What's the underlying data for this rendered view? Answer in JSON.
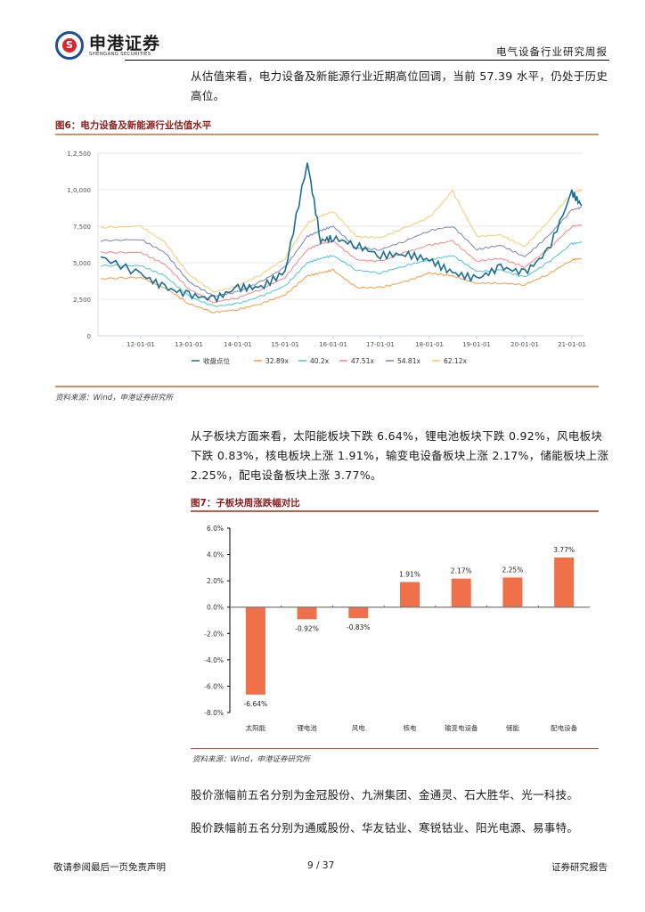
{
  "header": {
    "logo_cn": "申港证券",
    "logo_en": "SHENGANG SECURITIES",
    "logo_glyph": "S",
    "report_title": "电气设备行业研究周报"
  },
  "paragraphs": {
    "valuation": "从估值来看，电力设备及新能源行业近期高位回调，当前 57.39 水平，仍处于历史高位。",
    "subsectors": "从子板块方面来看，太阳能板块下跌 6.64%，锂电池板块下跌 0.92%，风电板块下跌 0.83%，核电板块上涨 1.91%，输变电设备板块上涨 2.17%，储能板块上涨 2.25%，配电设备板块上涨 3.77%。",
    "top_gainers": "股价涨幅前五名分别为金冠股份、九洲集团、金通灵、石大胜华、光一科技。",
    "top_losers": "股价跌幅前五名分别为通威股份、华友钴业、寒锐钴业、阳光电源、易事特。"
  },
  "figure6": {
    "title": "图6：电力设备及新能源行业估值水平",
    "source": "资料来源：Wind，申港证券研究所"
  },
  "figure7": {
    "title": "图7：子板块周涨跌幅对比",
    "source": "资料来源：Wind，申港证券研究所"
  },
  "footer": {
    "disclaimer": "敬请参阅最后一页免责声明",
    "page": "9 / 37",
    "doc_type": "证券研究报告"
  },
  "chart_data": [
    {
      "type": "line",
      "title": "电力设备及新能源行业估值水平",
      "xlabel": "",
      "ylabel": "",
      "ylim": [
        0,
        12500
      ],
      "yticks": [
        "0",
        "2,500",
        "5,000",
        "7,500",
        "1,0,000",
        "1,2,500"
      ],
      "xticks": [
        "12-01-01",
        "13-01-01",
        "14-01-01",
        "15-01-01",
        "16-01-01",
        "17-01-01",
        "18-01-01",
        "19-01-01",
        "20-01-01",
        "21-01-01"
      ],
      "grid": true,
      "legend_position": "bottom",
      "x": [
        "11-07",
        "12-01",
        "12-07",
        "13-01",
        "13-07",
        "14-01",
        "14-07",
        "15-01",
        "15-06",
        "15-09",
        "16-01",
        "16-07",
        "17-01",
        "17-07",
        "18-01",
        "18-07",
        "19-01",
        "19-07",
        "20-01",
        "20-07",
        "21-01",
        "21-02"
      ],
      "series": [
        {
          "name": "收盘点位",
          "color": "#1a6e96",
          "values": [
            5400,
            4200,
            3300,
            2800,
            2500,
            3300,
            3300,
            4400,
            11900,
            6500,
            6700,
            6200,
            5500,
            5600,
            5200,
            4300,
            3900,
            4700,
            4300,
            5800,
            9800,
            8900
          ]
        },
        {
          "name": "32.89x",
          "color": "#f39a3e",
          "values": [
            3900,
            4000,
            3300,
            2200,
            1600,
            1800,
            2200,
            2800,
            4100,
            4300,
            4500,
            3300,
            3300,
            3700,
            4300,
            4100,
            3600,
            3600,
            3500,
            4200,
            5200,
            5300
          ]
        },
        {
          "name": "40.2x",
          "color": "#4ec5c8",
          "values": [
            4800,
            4800,
            4100,
            2700,
            2000,
            2200,
            2700,
            3400,
            5000,
            5300,
            5500,
            4500,
            4300,
            4800,
            5200,
            5500,
            4400,
            4500,
            4000,
            5000,
            6300,
            6400
          ]
        },
        {
          "name": "47.51x",
          "color": "#f08783",
          "values": [
            5700,
            5700,
            4900,
            3200,
            2300,
            2600,
            3200,
            4000,
            5900,
            6300,
            6500,
            5200,
            5100,
            5700,
            6200,
            6500,
            5100,
            5300,
            4700,
            5900,
            7500,
            7600
          ]
        },
        {
          "name": "54.81x",
          "color": "#7a84b3",
          "values": [
            6500,
            6600,
            5700,
            3700,
            2700,
            3000,
            3700,
            4700,
            6800,
            7200,
            7500,
            6000,
            5900,
            6500,
            7200,
            7500,
            5900,
            6200,
            5400,
            6800,
            8600,
            8800
          ]
        },
        {
          "name": "62.12x",
          "color": "#f6c96d",
          "values": [
            7400,
            7500,
            6400,
            4200,
            3000,
            3400,
            4200,
            5300,
            7700,
            8200,
            8500,
            6800,
            6700,
            7400,
            8100,
            9900,
            6800,
            6900,
            6100,
            7800,
            9800,
            10000
          ]
        }
      ]
    },
    {
      "type": "bar",
      "title": "子板块周涨跌幅对比",
      "xlabel": "",
      "ylabel": "",
      "ylim": [
        -8.0,
        6.0
      ],
      "yticks": [
        "6.0%",
        "4.0%",
        "2.0%",
        "0.0%",
        "-2.0%",
        "-4.0%",
        "-6.0%",
        "-8.0%"
      ],
      "categories": [
        "太阳能",
        "锂电池",
        "风电",
        "核电",
        "输变电设备",
        "储能",
        "配电设备"
      ],
      "values": [
        -6.64,
        -0.92,
        -0.83,
        1.91,
        2.17,
        2.25,
        3.77
      ],
      "labels": [
        "-6.64%",
        "-0.92%",
        "-0.83%",
        "1.91%",
        "2.17%",
        "2.25%",
        "3.77%"
      ],
      "color": "#ef7049",
      "grid": false
    }
  ]
}
